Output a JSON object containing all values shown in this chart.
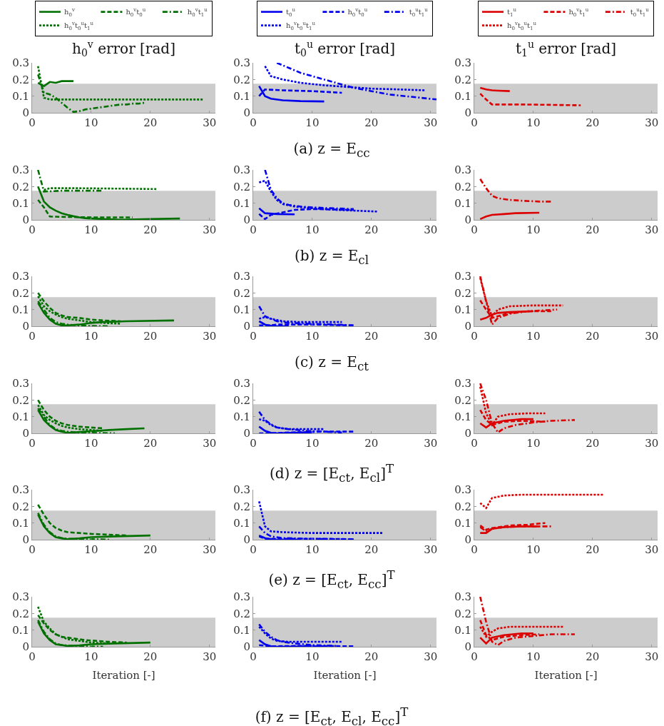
{
  "chart_data": [
    {
      "type": "line",
      "title": "h$_{0}$$^{v}$ error [rad]",
      "legend": "top",
      "xlim": [
        0,
        31
      ],
      "xticks": [
        0,
        10,
        20,
        30
      ],
      "ylim": [
        0,
        0.3
      ],
      "yticks": [
        0,
        0.1,
        0.2,
        0.3
      ],
      "bands": [
        {
          "axis": "y",
          "from": 0,
          "to": 0.175,
          "color": "#cccccc"
        }
      ],
      "series": [
        {
          "name": "h$_{0}$$^{v}$",
          "color": "#007000",
          "line_style": "solid",
          "x": [
            1,
            2,
            3,
            4,
            5,
            6,
            7
          ],
          "values": [
            0.18,
            0.16,
            0.185,
            0.18,
            0.19,
            0.19,
            0.19
          ]
        },
        {
          "name": "h$_{0}$$^{v}$t$_{0}$$^{u}$",
          "color": "#007000",
          "line_style": "dashed"
        },
        {
          "name": "h$_{0}$$^{v}$t$_{1}$$^{u}$",
          "color": "#007000",
          "line_style": "dashdot",
          "x": [
            1,
            2,
            3,
            4,
            5,
            6,
            7,
            8,
            9,
            10,
            11,
            12,
            13,
            14,
            15,
            16,
            17,
            18,
            19
          ],
          "values": [
            0.23,
            0.12,
            0.11,
            0.09,
            0.06,
            0.03,
            0.005,
            0.01,
            0.02,
            0.025,
            0.03,
            0.035,
            0.04,
            0.045,
            0.05,
            0.05,
            0.055,
            0.055,
            0.06
          ]
        },
        {
          "name": "h$_{0}$$^{v}$t$_{0}$$^{u}$t$_{1}$$^{u}$",
          "color": "#007000",
          "line_style": "dotted",
          "x": [
            1,
            2,
            3,
            5,
            29
          ],
          "values": [
            0.28,
            0.09,
            0.08,
            0.08,
            0.08
          ]
        }
      ]
    },
    {
      "type": "line",
      "title": "t$_{0}$$^{u}$ error [rad]",
      "legend": "top",
      "annotations": [
        "(a) z = E$_{cc}$"
      ],
      "xlim": [
        0,
        31
      ],
      "xticks": [
        0,
        10,
        20,
        30
      ],
      "ylim": [
        0,
        0.3
      ],
      "yticks": [
        0,
        0.1,
        0.2,
        0.3
      ],
      "bands": [
        {
          "axis": "y",
          "from": 0,
          "to": 0.175,
          "color": "#cccccc"
        }
      ],
      "series": [
        {
          "name": "t$_{0}$$^{u}$",
          "color": "#0000ee",
          "line_style": "solid",
          "x": [
            1,
            2,
            3,
            5,
            8,
            12
          ],
          "values": [
            0.16,
            0.1,
            0.085,
            0.075,
            0.07,
            0.068
          ]
        },
        {
          "name": "h$_{0}$$^{v}$t$_{0}$$^{u}$",
          "color": "#0000ee",
          "line_style": "dashed",
          "x": [
            1,
            2,
            5,
            10,
            15
          ],
          "values": [
            0.1,
            0.14,
            0.135,
            0.13,
            0.12
          ]
        },
        {
          "name": "t$_{0}$$^{u}$t$_{1}$$^{u}$",
          "color": "#0000ee",
          "line_style": "dashdot",
          "x": [
            4,
            6,
            8,
            11,
            14,
            17,
            20,
            23,
            27,
            31
          ],
          "values": [
            0.3,
            0.27,
            0.24,
            0.21,
            0.18,
            0.15,
            0.13,
            0.11,
            0.095,
            0.08
          ]
        },
        {
          "name": "h$_{0}$$^{v}$t$_{0}$$^{u}$t$_{1}$$^{u}$",
          "color": "#0000ee",
          "line_style": "dotted",
          "x": [
            2,
            3,
            5,
            8,
            12,
            16,
            20,
            25,
            29
          ],
          "values": [
            0.28,
            0.22,
            0.2,
            0.18,
            0.165,
            0.155,
            0.145,
            0.14,
            0.135
          ]
        }
      ]
    },
    {
      "type": "line",
      "title": "t$_{1}$$^{u}$ error [rad]",
      "legend": "top",
      "xlim": [
        0,
        31
      ],
      "xticks": [
        0,
        10,
        20,
        30
      ],
      "ylim": [
        0,
        0.3
      ],
      "yticks": [
        0,
        0.1,
        0.2,
        0.3
      ],
      "bands": [
        {
          "axis": "y",
          "from": 0,
          "to": 0.175,
          "color": "#cccccc"
        }
      ],
      "series": [
        {
          "name": "t$_{1}$$^{u}$",
          "color": "#dd0000",
          "line_style": "solid",
          "x": [
            1,
            2,
            3,
            4,
            6
          ],
          "values": [
            0.15,
            0.14,
            0.135,
            0.133,
            0.13
          ]
        },
        {
          "name": "h$_{0}$$^{v}$t$_{1}$$^{u}$",
          "color": "#dd0000",
          "line_style": "dashed",
          "x": [
            1,
            2,
            3,
            8,
            18
          ],
          "values": [
            0.115,
            0.08,
            0.05,
            0.05,
            0.045
          ]
        },
        {
          "name": "t$_{0}$$^{u}$t$_{1}$$^{u}$",
          "color": "#dd0000",
          "line_style": "dashdot"
        },
        {
          "name": "h$_{0}$$^{v}$t$_{0}$$^{u}$t$_{1}$$^{u}$",
          "color": "#dd0000",
          "line_style": "dotted"
        }
      ]
    },
    {
      "type": "line",
      "xlim": [
        0,
        31
      ],
      "xticks": [
        0,
        10,
        20,
        30
      ],
      "ylim": [
        0,
        0.3
      ],
      "yticks": [
        0,
        0.1,
        0.2,
        0.3
      ],
      "bands": [
        {
          "axis": "y",
          "from": 0,
          "to": 0.175,
          "color": "#cccccc"
        }
      ],
      "series": [
        {
          "color": "#007000",
          "line_style": "solid",
          "x": [
            1,
            2,
            3,
            4,
            5,
            6,
            7,
            8,
            9,
            10,
            12,
            15,
            20,
            25
          ],
          "values": [
            0.2,
            0.11,
            0.075,
            0.055,
            0.04,
            0.03,
            0.022,
            0.015,
            0.01,
            0.008,
            0.005,
            0.001,
            0.005,
            0.008
          ]
        },
        {
          "color": "#007000",
          "line_style": "dashed",
          "x": [
            1,
            2,
            3,
            5,
            10,
            17
          ],
          "values": [
            0.12,
            0.075,
            0.02,
            0.018,
            0.015,
            0.015
          ]
        },
        {
          "color": "#007000",
          "line_style": "dashdot",
          "x": [
            1,
            2,
            5,
            12
          ],
          "values": [
            0.3,
            0.17,
            0.175,
            0.175
          ]
        },
        {
          "color": "#007000",
          "line_style": "dotted",
          "x": [
            2,
            3,
            8,
            21
          ],
          "values": [
            0.18,
            0.19,
            0.19,
            0.185
          ]
        }
      ]
    },
    {
      "type": "line",
      "annotations": [
        "(b) z = E$_{cl}$"
      ],
      "xlim": [
        0,
        31
      ],
      "xticks": [
        0,
        10,
        20,
        30
      ],
      "ylim": [
        0,
        0.3
      ],
      "yticks": [
        0,
        0.1,
        0.2,
        0.3
      ],
      "bands": [
        {
          "axis": "y",
          "from": 0,
          "to": 0.175,
          "color": "#cccccc"
        }
      ],
      "series": [
        {
          "color": "#0000ee",
          "line_style": "solid",
          "x": [
            1,
            2,
            4,
            7
          ],
          "values": [
            0.07,
            0.04,
            0.035,
            0.033
          ]
        },
        {
          "color": "#0000ee",
          "line_style": "dashed",
          "x": [
            1,
            2,
            3,
            5,
            7,
            10,
            17
          ],
          "values": [
            0.035,
            0.005,
            0.03,
            0.045,
            0.06,
            0.065,
            0.06
          ]
        },
        {
          "color": "#0000ee",
          "line_style": "dashdot",
          "x": [
            2,
            3,
            4,
            5,
            6,
            8,
            10,
            13,
            17
          ],
          "values": [
            0.3,
            0.18,
            0.13,
            0.1,
            0.09,
            0.08,
            0.075,
            0.07,
            0.065
          ]
        },
        {
          "color": "#0000ee",
          "line_style": "dotted",
          "x": [
            1,
            2,
            3,
            4,
            5,
            7,
            10,
            14,
            21
          ],
          "values": [
            0.225,
            0.235,
            0.17,
            0.12,
            0.095,
            0.08,
            0.07,
            0.06,
            0.05
          ]
        }
      ]
    },
    {
      "type": "line",
      "xlim": [
        0,
        31
      ],
      "xticks": [
        0,
        10,
        20,
        30
      ],
      "ylim": [
        0,
        0.3
      ],
      "yticks": [
        0,
        0.1,
        0.2,
        0.3
      ],
      "bands": [
        {
          "axis": "y",
          "from": 0,
          "to": 0.175,
          "color": "#cccccc"
        }
      ],
      "series": [
        {
          "color": "#dd0000",
          "line_style": "solid",
          "x": [
            1,
            2,
            3,
            5,
            7,
            11
          ],
          "values": [
            0.005,
            0.02,
            0.03,
            0.035,
            0.04,
            0.043
          ]
        },
        {
          "color": "#dd0000",
          "line_style": "dashdot",
          "x": [
            1,
            2,
            3,
            4,
            6,
            8,
            11,
            13
          ],
          "values": [
            0.245,
            0.19,
            0.145,
            0.13,
            0.12,
            0.115,
            0.11,
            0.11
          ]
        }
      ]
    },
    {
      "type": "line",
      "xlim": [
        0,
        31
      ],
      "xticks": [
        0,
        10,
        20,
        30
      ],
      "ylim": [
        0,
        0.3
      ],
      "yticks": [
        0,
        0.1,
        0.2,
        0.3
      ],
      "bands": [
        {
          "axis": "y",
          "from": 0,
          "to": 0.175,
          "color": "#cccccc"
        }
      ],
      "series": [
        {
          "color": "#007000",
          "line_style": "solid",
          "x": [
            1,
            2,
            3,
            4,
            5,
            6,
            8,
            10,
            12,
            16,
            24
          ],
          "values": [
            0.14,
            0.08,
            0.04,
            0.015,
            0.005,
            0.005,
            0.01,
            0.02,
            0.025,
            0.03,
            0.035
          ]
        },
        {
          "color": "#007000",
          "line_style": "dashed",
          "x": [
            1,
            2,
            3,
            4,
            5,
            6,
            8,
            10,
            12,
            15
          ],
          "values": [
            0.2,
            0.15,
            0.11,
            0.08,
            0.065,
            0.055,
            0.05,
            0.04,
            0.035,
            0.03
          ]
        },
        {
          "color": "#007000",
          "line_style": "dashdot",
          "x": [
            1,
            2,
            3,
            4,
            5,
            6,
            8,
            10,
            13
          ],
          "values": [
            0.15,
            0.1,
            0.05,
            0.025,
            0.015,
            0.01,
            0.005,
            0.002,
            0
          ]
        },
        {
          "color": "#007000",
          "line_style": "dotted",
          "x": [
            1,
            2,
            3,
            4,
            5,
            6,
            8,
            10,
            12,
            15
          ],
          "values": [
            0.18,
            0.12,
            0.09,
            0.07,
            0.055,
            0.045,
            0.035,
            0.025,
            0.02,
            0.015
          ]
        }
      ]
    },
    {
      "type": "line",
      "annotations": [
        "(c) z = E$_{ct}$"
      ],
      "xlim": [
        0,
        31
      ],
      "xticks": [
        0,
        10,
        20,
        30
      ],
      "ylim": [
        0,
        0.3
      ],
      "yticks": [
        0,
        0.1,
        0.2,
        0.3
      ],
      "bands": [
        {
          "axis": "y",
          "from": 0,
          "to": 0.175,
          "color": "#cccccc"
        }
      ],
      "series": [
        {
          "color": "#0000ee",
          "line_style": "solid",
          "x": [
            1,
            2,
            3,
            4,
            6
          ],
          "values": [
            0.03,
            0.01,
            0.003,
            0,
            0
          ]
        },
        {
          "color": "#0000ee",
          "line_style": "dashed",
          "x": [
            1,
            3,
            4,
            10,
            17
          ],
          "values": [
            0.005,
            0.005,
            0.01,
            0.01,
            0.005
          ]
        },
        {
          "color": "#0000ee",
          "line_style": "dashdot",
          "x": [
            1,
            2,
            3,
            4,
            6,
            10,
            14,
            17
          ],
          "values": [
            0.12,
            0.06,
            0.045,
            0.03,
            0.02,
            0.015,
            0.01,
            0.005
          ]
        },
        {
          "color": "#0000ee",
          "line_style": "dotted",
          "x": [
            1,
            2,
            3,
            5,
            8,
            15
          ],
          "values": [
            0.045,
            0.055,
            0.045,
            0.03,
            0.025,
            0.025
          ]
        }
      ]
    },
    {
      "type": "line",
      "xlim": [
        0,
        31
      ],
      "xticks": [
        0,
        10,
        20,
        30
      ],
      "ylim": [
        0,
        0.3
      ],
      "yticks": [
        0,
        0.1,
        0.2,
        0.3
      ],
      "bands": [
        {
          "axis": "y",
          "from": 0,
          "to": 0.175,
          "color": "#cccccc"
        }
      ],
      "series": [
        {
          "color": "#dd0000",
          "line_style": "solid",
          "x": [
            1,
            2,
            3,
            4,
            6,
            10
          ],
          "values": [
            0.04,
            0.05,
            0.07,
            0.08,
            0.085,
            0.09
          ]
        },
        {
          "color": "#dd0000",
          "line_style": "dashed",
          "x": [
            1,
            2,
            3,
            4,
            6,
            9,
            13
          ],
          "values": [
            0.155,
            0.1,
            0.05,
            0.06,
            0.08,
            0.09,
            0.09
          ]
        },
        {
          "color": "#dd0000",
          "line_style": "dashdot",
          "x": [
            1,
            2,
            3,
            4,
            6,
            9,
            14
          ],
          "values": [
            0.3,
            0.15,
            0.01,
            0.05,
            0.075,
            0.09,
            0.1
          ]
        },
        {
          "color": "#dd0000",
          "line_style": "dotted",
          "x": [
            1,
            2,
            3,
            4,
            6,
            10,
            15
          ],
          "values": [
            0.29,
            0.15,
            0.06,
            0.1,
            0.12,
            0.125,
            0.125
          ]
        }
      ]
    },
    {
      "type": "line",
      "xlim": [
        0,
        31
      ],
      "xticks": [
        0,
        10,
        20,
        30
      ],
      "ylim": [
        0,
        0.3
      ],
      "yticks": [
        0,
        0.1,
        0.2,
        0.3
      ],
      "bands": [
        {
          "axis": "y",
          "from": 0,
          "to": 0.175,
          "color": "#cccccc"
        }
      ],
      "series": [
        {
          "color": "#007000",
          "line_style": "solid",
          "x": [
            1,
            2,
            3,
            4,
            5,
            6,
            7,
            9,
            11,
            13,
            16,
            19
          ],
          "values": [
            0.14,
            0.08,
            0.045,
            0.02,
            0.01,
            0.003,
            0.005,
            0.01,
            0.015,
            0.02,
            0.025,
            0.03
          ]
        },
        {
          "color": "#007000",
          "line_style": "dashed",
          "x": [
            1,
            2,
            3,
            4,
            5,
            6,
            8,
            10,
            12
          ],
          "values": [
            0.2,
            0.14,
            0.1,
            0.075,
            0.06,
            0.05,
            0.04,
            0.035,
            0.03
          ]
        },
        {
          "color": "#007000",
          "line_style": "dashdot",
          "x": [
            1,
            2,
            3,
            4,
            5,
            6,
            8,
            10,
            14
          ],
          "values": [
            0.15,
            0.1,
            0.05,
            0.025,
            0.015,
            0.01,
            0.005,
            0.003,
            0
          ]
        },
        {
          "color": "#007000",
          "line_style": "dotted",
          "x": [
            1,
            2,
            3,
            4,
            5,
            6,
            8,
            10,
            12
          ],
          "values": [
            0.17,
            0.11,
            0.08,
            0.06,
            0.045,
            0.035,
            0.025,
            0.02,
            0.015
          ]
        }
      ]
    },
    {
      "type": "line",
      "annotations": [
        "(d) z = [E$_{ct}$, E$_{cl}$]$^{T}$"
      ],
      "xlim": [
        0,
        31
      ],
      "xticks": [
        0,
        10,
        20,
        30
      ],
      "ylim": [
        0,
        0.3
      ],
      "yticks": [
        0,
        0.1,
        0.2,
        0.3
      ],
      "bands": [
        {
          "axis": "y",
          "from": 0,
          "to": 0.175,
          "color": "#cccccc"
        }
      ],
      "series": [
        {
          "color": "#0000ee",
          "line_style": "solid",
          "x": [
            1,
            2,
            3,
            4,
            6,
            10
          ],
          "values": [
            0.04,
            0.015,
            0.003,
            0,
            0.003,
            0.005
          ]
        },
        {
          "color": "#0000ee",
          "line_style": "dashed",
          "x": [
            1,
            3,
            6,
            12,
            17
          ],
          "values": [
            0,
            0,
            0.005,
            0.01,
            0.01
          ]
        },
        {
          "color": "#0000ee",
          "line_style": "dashdot",
          "x": [
            1,
            2,
            3,
            4,
            6,
            9,
            12,
            15
          ],
          "values": [
            0.13,
            0.08,
            0.055,
            0.035,
            0.025,
            0.015,
            0.01,
            0.005
          ]
        },
        {
          "color": "#0000ee",
          "line_style": "dotted",
          "x": [
            1,
            2,
            3,
            4,
            6,
            12
          ],
          "values": [
            0.085,
            0.075,
            0.05,
            0.035,
            0.025,
            0.025
          ]
        }
      ]
    },
    {
      "type": "line",
      "xlim": [
        0,
        31
      ],
      "xticks": [
        0,
        10,
        20,
        30
      ],
      "ylim": [
        0,
        0.3
      ],
      "yticks": [
        0,
        0.1,
        0.2,
        0.3
      ],
      "bands": [
        {
          "axis": "y",
          "from": 0,
          "to": 0.175,
          "color": "#cccccc"
        }
      ],
      "series": [
        {
          "color": "#dd0000",
          "line_style": "solid",
          "x": [
            1,
            2,
            3,
            5,
            8,
            10
          ],
          "values": [
            0.06,
            0.035,
            0.06,
            0.075,
            0.085,
            0.085
          ]
        },
        {
          "color": "#dd0000",
          "line_style": "dashed",
          "x": [
            1,
            2,
            3,
            5,
            8,
            12
          ],
          "values": [
            0.14,
            0.08,
            0.05,
            0.07,
            0.075,
            0.07
          ]
        },
        {
          "color": "#dd0000",
          "line_style": "dashdot",
          "x": [
            1,
            2,
            3,
            4,
            5,
            7,
            10,
            13,
            17
          ],
          "values": [
            0.3,
            0.2,
            0.06,
            0.005,
            0.03,
            0.05,
            0.065,
            0.075,
            0.08
          ]
        },
        {
          "color": "#dd0000",
          "line_style": "dotted",
          "x": [
            1,
            2,
            3,
            4,
            6,
            9,
            12
          ],
          "values": [
            0.28,
            0.12,
            0.05,
            0.1,
            0.115,
            0.12,
            0.12
          ]
        }
      ]
    },
    {
      "type": "line",
      "xlim": [
        0,
        31
      ],
      "xticks": [
        0,
        10,
        20,
        30
      ],
      "ylim": [
        0,
        0.3
      ],
      "yticks": [
        0,
        0.1,
        0.2,
        0.3
      ],
      "bands": [
        {
          "axis": "y",
          "from": 0,
          "to": 0.175,
          "color": "#cccccc"
        }
      ],
      "series": [
        {
          "color": "#007000",
          "line_style": "solid",
          "x": [
            1,
            2,
            3,
            4,
            5,
            6,
            8,
            10,
            14,
            20
          ],
          "values": [
            0.15,
            0.08,
            0.04,
            0.015,
            0.008,
            0.003,
            0.008,
            0.015,
            0.02,
            0.025
          ]
        },
        {
          "color": "#007000",
          "line_style": "dashed",
          "x": [
            1,
            2,
            3,
            4,
            5,
            6,
            8,
            10,
            13,
            16
          ],
          "values": [
            0.21,
            0.15,
            0.1,
            0.07,
            0.055,
            0.045,
            0.04,
            0.035,
            0.03,
            0.025
          ]
        },
        {
          "color": "#007000",
          "line_style": "dashdot",
          "x": [
            1,
            2,
            3,
            4,
            5,
            6,
            8,
            10,
            13
          ],
          "values": [
            0.16,
            0.09,
            0.045,
            0.02,
            0.01,
            0.005,
            0.005,
            0.003,
            0
          ]
        }
      ]
    },
    {
      "type": "line",
      "annotations": [
        "(e) z = [E$_{ct}$, E$_{cc}$]$^{T}$"
      ],
      "xlim": [
        0,
        31
      ],
      "xticks": [
        0,
        10,
        20,
        30
      ],
      "ylim": [
        0,
        0.3
      ],
      "yticks": [
        0,
        0.1,
        0.2,
        0.3
      ],
      "bands": [
        {
          "axis": "y",
          "from": 0,
          "to": 0.175,
          "color": "#cccccc"
        }
      ],
      "series": [
        {
          "color": "#0000ee",
          "line_style": "solid",
          "x": [
            1,
            2,
            3,
            4,
            8
          ],
          "values": [
            0.025,
            0.01,
            0.003,
            0,
            0
          ]
        },
        {
          "color": "#0000ee",
          "line_style": "dashed",
          "x": [
            1,
            2,
            6,
            12,
            17
          ],
          "values": [
            0.02,
            0.005,
            0.005,
            0.005,
            0.003
          ]
        },
        {
          "color": "#0000ee",
          "line_style": "dashdot",
          "x": [
            1,
            2,
            3,
            5,
            10,
            17
          ],
          "values": [
            0.08,
            0.04,
            0.02,
            0.01,
            0.005,
            0.002
          ]
        },
        {
          "color": "#0000ee",
          "line_style": "dotted",
          "x": [
            1,
            2,
            3,
            5,
            10,
            22
          ],
          "values": [
            0.23,
            0.08,
            0.05,
            0.045,
            0.04,
            0.04
          ]
        }
      ]
    },
    {
      "type": "line",
      "xlim": [
        0,
        31
      ],
      "xticks": [
        0,
        10,
        20,
        30
      ],
      "ylim": [
        0,
        0.3
      ],
      "yticks": [
        0,
        0.1,
        0.2,
        0.3
      ],
      "bands": [
        {
          "axis": "y",
          "from": 0,
          "to": 0.175,
          "color": "#cccccc"
        }
      ],
      "series": [
        {
          "color": "#dd0000",
          "line_style": "solid",
          "x": [
            1,
            2,
            3,
            5,
            8,
            11
          ],
          "values": [
            0.04,
            0.04,
            0.065,
            0.075,
            0.08,
            0.08
          ]
        },
        {
          "color": "#dd0000",
          "line_style": "dashed",
          "x": [
            1,
            2,
            3,
            6,
            9,
            12
          ],
          "values": [
            0.085,
            0.06,
            0.07,
            0.085,
            0.09,
            0.1
          ]
        },
        {
          "color": "#dd0000",
          "line_style": "dashdot",
          "x": [
            1,
            2,
            3,
            5,
            8,
            13
          ],
          "values": [
            0.075,
            0.05,
            0.065,
            0.075,
            0.08,
            0.08
          ]
        },
        {
          "color": "#dd0000",
          "line_style": "dotted",
          "x": [
            1,
            2,
            3,
            5,
            8,
            22
          ],
          "values": [
            0.22,
            0.19,
            0.25,
            0.265,
            0.27,
            0.27
          ]
        }
      ]
    },
    {
      "type": "line",
      "xlabel": "Iteration [-]",
      "xlim": [
        0,
        31
      ],
      "xticks": [
        0,
        10,
        20,
        30
      ],
      "ylim": [
        0,
        0.3
      ],
      "yticks": [
        0,
        0.1,
        0.2,
        0.3
      ],
      "bands": [
        {
          "axis": "y",
          "from": 0,
          "to": 0.175,
          "color": "#cccccc"
        }
      ],
      "series": [
        {
          "color": "#007000",
          "line_style": "solid",
          "x": [
            1,
            2,
            3,
            4,
            6,
            8,
            10,
            14,
            20
          ],
          "values": [
            0.15,
            0.08,
            0.04,
            0.015,
            0.005,
            0.008,
            0.015,
            0.02,
            0.025
          ]
        },
        {
          "color": "#007000",
          "line_style": "dashed",
          "x": [
            1,
            2,
            3,
            4,
            5,
            7,
            9,
            11,
            13,
            16
          ],
          "values": [
            0.19,
            0.14,
            0.1,
            0.075,
            0.06,
            0.05,
            0.04,
            0.035,
            0.03,
            0.025
          ]
        },
        {
          "color": "#007000",
          "line_style": "dashdot",
          "x": [
            1,
            2,
            3,
            4,
            5,
            7,
            9,
            12
          ],
          "values": [
            0.16,
            0.09,
            0.045,
            0.02,
            0.01,
            0.005,
            0.003,
            0
          ]
        },
        {
          "color": "#007000",
          "line_style": "dotted",
          "x": [
            1,
            2,
            3,
            4,
            5,
            6,
            8,
            10,
            13
          ],
          "values": [
            0.24,
            0.15,
            0.11,
            0.075,
            0.06,
            0.045,
            0.035,
            0.025,
            0.02
          ]
        }
      ]
    },
    {
      "type": "line",
      "xlabel": "Iteration [-]",
      "annotations": [
        "(f) z = [E$_{ct}$, E$_{cl}$, E$_{cc}$]$^{T}$"
      ],
      "xlim": [
        0,
        31
      ],
      "xticks": [
        0,
        10,
        20,
        30
      ],
      "ylim": [
        0,
        0.3
      ],
      "yticks": [
        0,
        0.1,
        0.2,
        0.3
      ],
      "bands": [
        {
          "axis": "y",
          "from": 0,
          "to": 0.175,
          "color": "#cccccc"
        }
      ],
      "series": [
        {
          "color": "#0000ee",
          "line_style": "solid",
          "x": [
            1,
            2,
            3,
            4,
            8,
            12
          ],
          "values": [
            0.04,
            0.015,
            0.003,
            0,
            0.002,
            0.003
          ]
        },
        {
          "color": "#0000ee",
          "line_style": "dashed",
          "x": [
            1,
            3,
            8,
            17
          ],
          "values": [
            0.01,
            0.003,
            0.005,
            0.003
          ]
        },
        {
          "color": "#0000ee",
          "line_style": "dashdot",
          "x": [
            1,
            2,
            3,
            4,
            5,
            7,
            10,
            14
          ],
          "values": [
            0.135,
            0.09,
            0.06,
            0.04,
            0.03,
            0.02,
            0.01,
            0.005
          ]
        },
        {
          "color": "#0000ee",
          "line_style": "dotted",
          "x": [
            1,
            2,
            3,
            4,
            6,
            15
          ],
          "values": [
            0.12,
            0.08,
            0.05,
            0.035,
            0.03,
            0.03
          ]
        }
      ]
    },
    {
      "type": "line",
      "xlabel": "Iteration [-]",
      "xlim": [
        0,
        31
      ],
      "xticks": [
        0,
        10,
        20,
        30
      ],
      "ylim": [
        0,
        0.3
      ],
      "yticks": [
        0,
        0.1,
        0.2,
        0.3
      ],
      "bands": [
        {
          "axis": "y",
          "from": 0,
          "to": 0.175,
          "color": "#cccccc"
        }
      ],
      "series": [
        {
          "color": "#dd0000",
          "line_style": "solid",
          "x": [
            1,
            2,
            3,
            5,
            8,
            10
          ],
          "values": [
            0.055,
            0.02,
            0.055,
            0.07,
            0.08,
            0.08
          ]
        },
        {
          "color": "#dd0000",
          "line_style": "dashed",
          "x": [
            1,
            2,
            3,
            5,
            8,
            11
          ],
          "values": [
            0.16,
            0.07,
            0.04,
            0.06,
            0.07,
            0.075
          ]
        },
        {
          "color": "#dd0000",
          "line_style": "dashdot",
          "x": [
            1,
            2,
            3,
            4,
            5,
            7,
            10,
            13,
            17
          ],
          "values": [
            0.3,
            0.15,
            0.03,
            0.01,
            0.035,
            0.055,
            0.065,
            0.075,
            0.075
          ]
        },
        {
          "color": "#dd0000",
          "line_style": "dotted",
          "x": [
            1,
            2,
            3,
            4,
            6,
            15
          ],
          "values": [
            0.12,
            0.06,
            0.09,
            0.11,
            0.12,
            0.12
          ]
        }
      ]
    }
  ]
}
